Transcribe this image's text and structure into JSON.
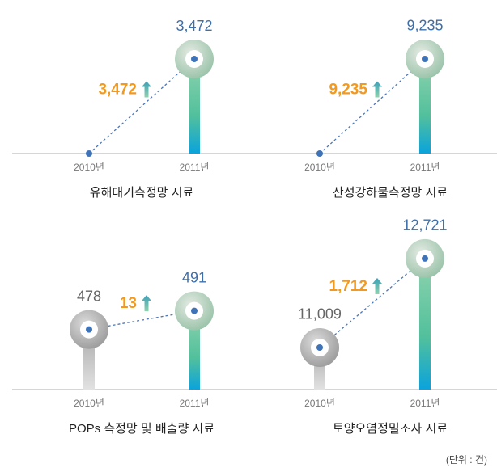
{
  "chart_data": [
    {
      "type": "lollipop",
      "title": "유해대기측정망 시료",
      "categories": [
        "2010년",
        "2011년"
      ],
      "values": [
        0,
        3472
      ],
      "value_labels": [
        null,
        "3,472"
      ],
      "change": 3472,
      "change_label": "3,472",
      "ylim": [
        0,
        5045
      ],
      "colors": [
        "#b9b9b9",
        "#5cc39a"
      ]
    },
    {
      "type": "lollipop",
      "title": "산성강하물측정망 시료",
      "categories": [
        "2010년",
        "2011년"
      ],
      "values": [
        0,
        9235
      ],
      "value_labels": [
        null,
        "9,235"
      ],
      "change": 9235,
      "change_label": "9,235",
      "ylim": [
        0,
        13418
      ],
      "colors": [
        "#b9b9b9",
        "#5cc39a"
      ]
    },
    {
      "type": "lollipop",
      "title": "POPs 측정망 및 배출량 시료",
      "categories": [
        "2010년",
        "2011년"
      ],
      "values": [
        478,
        491
      ],
      "value_labels": [
        "478",
        "491"
      ],
      "change": 13,
      "change_label": "13",
      "ylim": [
        436,
        532
      ],
      "colors": [
        "#b9b9b9",
        "#5cc39a"
      ]
    },
    {
      "type": "lollipop",
      "title": "토양오염정밀조사 시료",
      "categories": [
        "2010년",
        "2011년"
      ],
      "values": [
        11009,
        12721
      ],
      "value_labels": [
        "11,009",
        "12,721"
      ],
      "change": 1712,
      "change_label": "1,712",
      "ylim": [
        10200,
        12844
      ],
      "colors": [
        "#b9b9b9",
        "#5cc39a"
      ]
    }
  ],
  "note": "(단위 : 건)"
}
